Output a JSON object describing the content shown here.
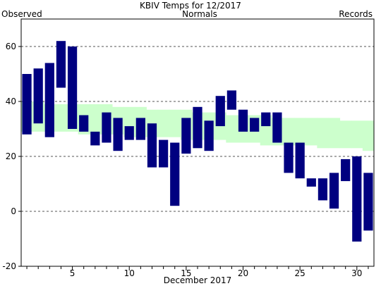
{
  "chart_data": {
    "type": "bar",
    "title": "KBIV Temps for 12/2017",
    "xlabel": "December 2017",
    "ylabel": "",
    "legend": [
      {
        "label": "Observed",
        "color": "#000080"
      },
      {
        "label": "Normals",
        "color": "#006400"
      },
      {
        "label": "Records",
        "color": "#b07fd0"
      }
    ],
    "xlim": [
      0.5,
      31.5
    ],
    "ylim": [
      -20,
      70
    ],
    "x_ticks": [
      5,
      10,
      15,
      20,
      25,
      30
    ],
    "y_ticks": [
      -20,
      0,
      20,
      40,
      60
    ],
    "grid": true,
    "days": [
      1,
      2,
      3,
      4,
      5,
      6,
      7,
      8,
      9,
      10,
      11,
      12,
      13,
      14,
      15,
      16,
      17,
      18,
      19,
      20,
      21,
      22,
      23,
      24,
      25,
      26,
      27,
      28,
      29,
      30,
      31
    ],
    "observed_high": [
      50,
      52,
      54,
      62,
      60,
      35,
      29,
      36,
      34,
      31,
      34,
      32,
      26,
      25,
      34,
      38,
      33,
      42,
      44,
      37,
      34,
      36,
      36,
      25,
      25,
      12,
      12,
      14,
      19,
      20,
      14
    ],
    "observed_low": [
      28,
      32,
      27,
      45,
      30,
      29,
      24,
      25,
      22,
      26,
      26,
      16,
      16,
      2,
      21,
      23,
      22,
      31,
      37,
      29,
      29,
      31,
      25,
      14,
      12,
      9,
      4,
      1,
      11,
      -11,
      -7
    ],
    "normal_high": [
      40,
      40,
      39,
      39,
      39,
      39,
      39,
      39,
      38,
      38,
      38,
      37,
      37,
      37,
      37,
      36,
      36,
      36,
      35,
      35,
      35,
      35,
      34,
      34,
      34,
      34,
      34,
      34,
      33,
      33,
      33
    ],
    "normal_low": [
      29,
      29,
      29,
      29,
      29,
      28,
      28,
      28,
      28,
      27,
      27,
      27,
      27,
      27,
      26,
      26,
      26,
      26,
      25,
      25,
      25,
      24,
      24,
      24,
      24,
      24,
      23,
      23,
      23,
      23,
      22
    ],
    "colors": {
      "observed": "#000080",
      "normals": "#ccffcc",
      "grid": "#555555"
    }
  }
}
